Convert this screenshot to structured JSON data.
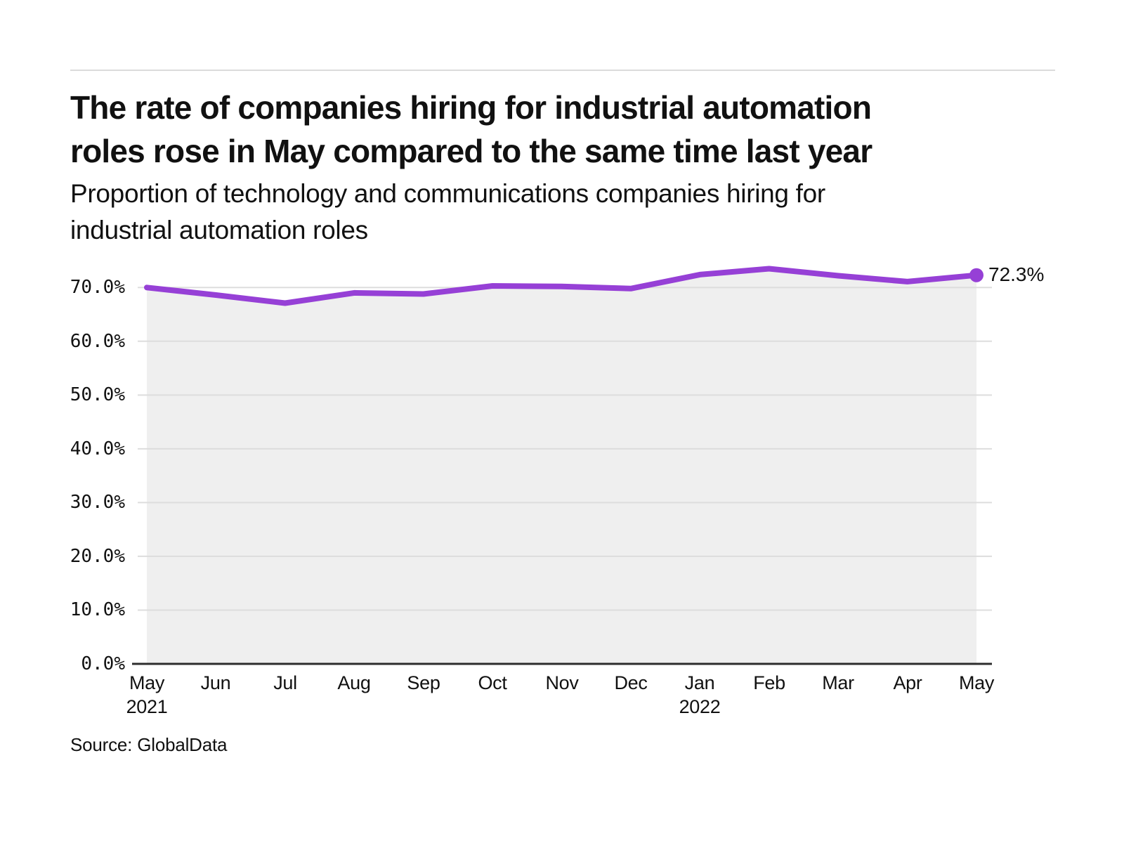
{
  "header": {
    "title_line1": "The rate of companies hiring for industrial automation",
    "title_line2": "roles rose in May compared to the same time last year",
    "subtitle_line1": "Proportion of technology and communications companies hiring for",
    "subtitle_line2": "industrial automation roles"
  },
  "chart_data": {
    "type": "area",
    "title": "Proportion of technology and communications companies hiring for industrial automation roles",
    "categories": [
      "May",
      "Jun",
      "Jul",
      "Aug",
      "Sep",
      "Oct",
      "Nov",
      "Dec",
      "Jan",
      "Feb",
      "Mar",
      "Apr",
      "May"
    ],
    "x_year_labels": [
      {
        "index": 0,
        "label": "2021"
      },
      {
        "index": 8,
        "label": "2022"
      }
    ],
    "series": [
      {
        "name": "Proportion of companies hiring for industrial automation roles",
        "values": [
          70.0,
          68.6,
          67.1,
          69.0,
          68.8,
          70.3,
          70.2,
          69.8,
          72.4,
          73.5,
          72.2,
          71.1,
          72.3
        ]
      }
    ],
    "end_label": "72.3%",
    "yticks": [
      70,
      60,
      50,
      40,
      30,
      20,
      10,
      0
    ],
    "ylabels": [
      "70.0%",
      "60.0%",
      "50.0%",
      "40.0%",
      "30.0%",
      "20.0%",
      "10.0%",
      "0.0%"
    ],
    "ylim": [
      0,
      75
    ],
    "xlabel": "",
    "ylabel": "",
    "grid": true,
    "legend_position": "none",
    "line_color": "#9640D6",
    "area_color": "#EFEFEF",
    "grid_color": "#DDDDDD",
    "axis_color": "#2D2D2D",
    "divider_color": "#DBDBDB",
    "text_color": "#111111"
  },
  "footer": {
    "source": "Source: GlobalData"
  }
}
